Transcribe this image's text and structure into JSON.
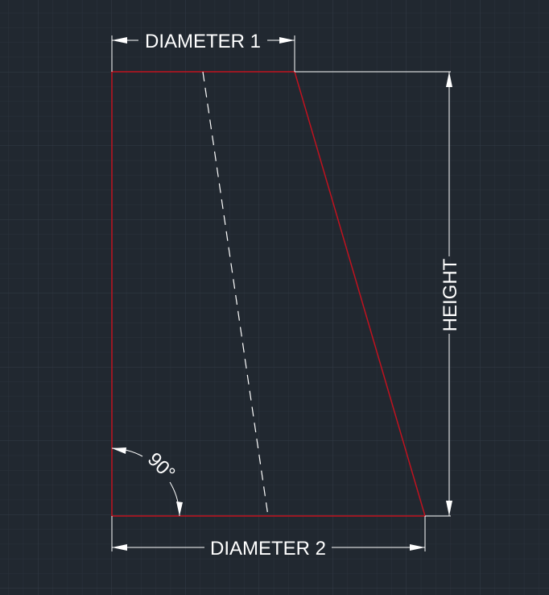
{
  "colors": {
    "background": "#212830",
    "grid_minor": "#2a323c",
    "grid_major": "#323b46",
    "outline": "#c1121f",
    "dimension": "#ffffff"
  },
  "labels": {
    "diameter_1": "DIAMETER 1",
    "diameter_2": "DIAMETER 2",
    "height": "HEIGHT",
    "angle": "90°"
  }
}
